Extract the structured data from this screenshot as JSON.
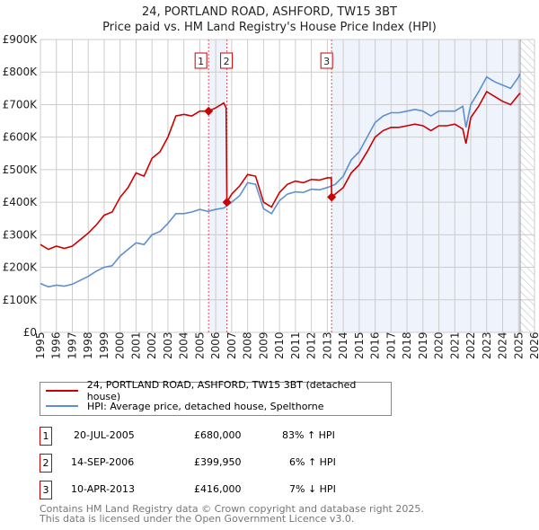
{
  "chart_data": {
    "type": "line",
    "title": "24, PORTLAND ROAD, ASHFORD, TW15 3BT",
    "subtitle": "Price paid vs. HM Land Registry's House Price Index (HPI)",
    "xlim": [
      1995,
      2026
    ],
    "ylim": [
      0,
      900000
    ],
    "x_ticks": [
      "1995",
      "1996",
      "1997",
      "1998",
      "1999",
      "2000",
      "2001",
      "2002",
      "2003",
      "2004",
      "2005",
      "2006",
      "2007",
      "2008",
      "2009",
      "2010",
      "2011",
      "2012",
      "2013",
      "2014",
      "2015",
      "2016",
      "2017",
      "2018",
      "2019",
      "2020",
      "2021",
      "2022",
      "2023",
      "2024",
      "2025",
      "2026"
    ],
    "y_ticks": [
      "£0",
      "£100K",
      "£200K",
      "£300K",
      "£400K",
      "£500K",
      "£600K",
      "£700K",
      "£800K",
      "£900K"
    ],
    "grid": true,
    "series": [
      {
        "name": "24, PORTLAND ROAD, ASHFORD, TW15 3BT (detached house)",
        "color": "#cc0000",
        "x": [
          1995,
          1995.5,
          1996,
          1996.5,
          1997,
          1997.5,
          1998,
          1998.5,
          1999,
          1999.5,
          2000,
          2000.5,
          2001,
          2001.5,
          2002,
          2002.5,
          2003,
          2003.5,
          2004,
          2004.5,
          2005,
          2005.55,
          2006,
          2006.5,
          2006.65,
          2006.7,
          2007,
          2007.5,
          2008,
          2008.5,
          2009,
          2009.5,
          2010,
          2010.5,
          2011,
          2011.5,
          2012,
          2012.5,
          2013,
          2013.25,
          2013.27,
          2013.5,
          2014,
          2014.5,
          2015,
          2015.5,
          2016,
          2016.5,
          2017,
          2017.5,
          2018,
          2018.5,
          2019,
          2019.5,
          2020,
          2020.5,
          2021,
          2021.5,
          2021.7,
          2022,
          2022.5,
          2023,
          2023.5,
          2024,
          2024.5,
          2025,
          2025.1
        ],
        "y": [
          270,
          255,
          265,
          258,
          265,
          285,
          305,
          330,
          360,
          370,
          415,
          445,
          490,
          480,
          535,
          555,
          600,
          665,
          670,
          665,
          680,
          680,
          690,
          705,
          690,
          400,
          425,
          450,
          485,
          480,
          400,
          385,
          430,
          455,
          465,
          460,
          470,
          468,
          475,
          475,
          416,
          425,
          445,
          490,
          515,
          555,
          600,
          620,
          630,
          630,
          635,
          640,
          635,
          620,
          635,
          635,
          640,
          625,
          580,
          660,
          695,
          740,
          725,
          710,
          700,
          730,
          735
        ]
      },
      {
        "name": "HPI: Average price, detached house, Spelthorne",
        "color": "#5f8fd0",
        "x": [
          1995,
          1995.5,
          1996,
          1996.5,
          1997,
          1997.5,
          1998,
          1998.5,
          1999,
          1999.5,
          2000,
          2000.5,
          2001,
          2001.5,
          2002,
          2002.5,
          2003,
          2003.5,
          2004,
          2004.5,
          2005,
          2005.5,
          2006,
          2006.5,
          2007,
          2007.5,
          2008,
          2008.5,
          2009,
          2009.5,
          2010,
          2010.5,
          2011,
          2011.5,
          2012,
          2012.5,
          2013,
          2013.5,
          2014,
          2014.5,
          2015,
          2015.5,
          2016,
          2016.5,
          2017,
          2017.5,
          2018,
          2018.5,
          2019,
          2019.5,
          2020,
          2020.5,
          2021,
          2021.5,
          2021.7,
          2022,
          2022.5,
          2023,
          2023.5,
          2024,
          2024.5,
          2025,
          2025.1
        ],
        "y": [
          150,
          140,
          145,
          142,
          148,
          160,
          172,
          188,
          200,
          205,
          235,
          255,
          275,
          270,
          300,
          310,
          335,
          365,
          365,
          370,
          378,
          372,
          378,
          382,
          400,
          420,
          460,
          455,
          380,
          365,
          405,
          425,
          432,
          430,
          440,
          438,
          445,
          455,
          480,
          530,
          555,
          600,
          645,
          665,
          675,
          675,
          680,
          685,
          680,
          665,
          680,
          680,
          680,
          695,
          630,
          700,
          740,
          785,
          770,
          760,
          750,
          785,
          795
        ]
      }
    ],
    "y_units": "thousands GBP",
    "sales": [
      {
        "label": "1",
        "x": 2005.55,
        "y": 680
      },
      {
        "label": "2",
        "x": 2006.7,
        "y": 399.95
      },
      {
        "label": "3",
        "x": 2013.27,
        "y": 416
      }
    ],
    "forecast_start": 2025.1
  },
  "legend": {
    "property": "24, PORTLAND ROAD, ASHFORD, TW15 3BT (detached house)",
    "hpi": "HPI: Average price, detached house, Spelthorne"
  },
  "table": [
    {
      "num": "1",
      "date": "20-JUL-2005",
      "price": "£680,000",
      "hpi": "83% ↑ HPI"
    },
    {
      "num": "2",
      "date": "14-SEP-2006",
      "price": "£399,950",
      "hpi": "6% ↑ HPI"
    },
    {
      "num": "3",
      "date": "10-APR-2013",
      "price": "£416,000",
      "hpi": "7% ↓ HPI"
    }
  ],
  "footer": {
    "line1": "Contains HM Land Registry data © Crown copyright and database right 2025.",
    "line2": "This data is licensed under the Open Government Licence v3.0."
  }
}
